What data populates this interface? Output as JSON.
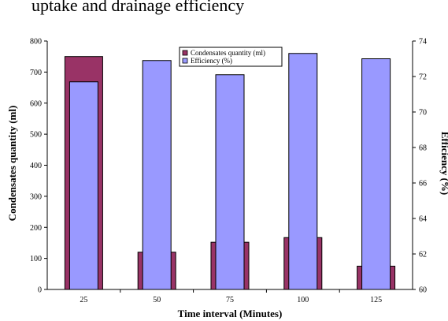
{
  "top_caption": "uptake and drainage efficiency",
  "chart_data": {
    "type": "bar",
    "categories": [
      "25",
      "50",
      "75",
      "100",
      "125"
    ],
    "series": [
      {
        "name": "Condensates quantity (ml)",
        "axis": "left",
        "color": "#993366",
        "values": [
          750,
          120,
          152,
          167,
          75
        ]
      },
      {
        "name": "Efficiency (%)",
        "axis": "right",
        "color": "#9999ff",
        "values": [
          71.7,
          72.9,
          72.1,
          73.3,
          73.0
        ]
      }
    ],
    "xlabel": "Time interval (Minutes)",
    "ylabel": "Condensates quantity (ml)",
    "y2label": "Efficiency (%)",
    "ylim": [
      0,
      800
    ],
    "yticks": [
      "0",
      "100",
      "200",
      "300",
      "400",
      "500",
      "600",
      "700",
      "800"
    ],
    "y2lim": [
      60,
      74
    ],
    "y2ticks": [
      "60",
      "62",
      "64",
      "66",
      "68",
      "70",
      "72",
      "74"
    ],
    "legend_position": "top-center",
    "grid": false
  }
}
